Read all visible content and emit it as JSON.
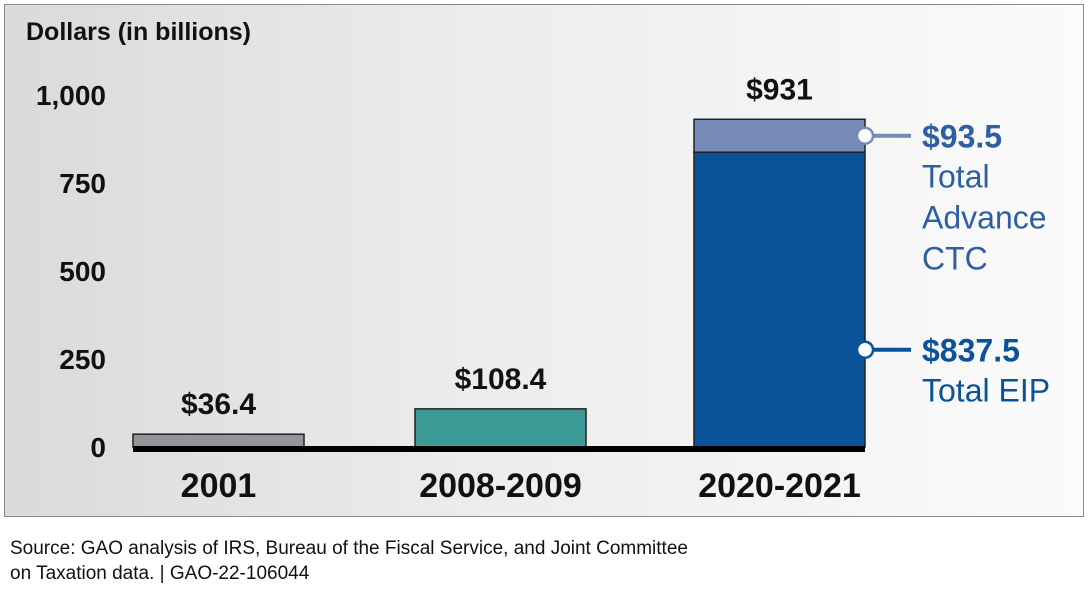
{
  "chart_data": {
    "type": "bar",
    "stacked": true,
    "ylabel": "Dollars (in billions)",
    "ylim": [
      0,
      1000
    ],
    "yticks": [
      {
        "value": 0,
        "label": "0"
      },
      {
        "value": 250,
        "label": "250"
      },
      {
        "value": 500,
        "label": "500"
      },
      {
        "value": 750,
        "label": "750"
      },
      {
        "value": 1000,
        "label": "1,000"
      }
    ],
    "grid": false,
    "categories": [
      "2001",
      "2008-2009",
      "2020-2021"
    ],
    "totals": [
      36.4,
      108.4,
      931
    ],
    "total_labels": [
      "$36.4",
      "$108.4",
      "$931"
    ],
    "bars": [
      {
        "category": "2001",
        "segments": [
          {
            "value": 36.4,
            "color": "#939598"
          }
        ]
      },
      {
        "category": "2008-2009",
        "segments": [
          {
            "value": 108.4,
            "color": "#3d9b97"
          }
        ]
      },
      {
        "category": "2020-2021",
        "segments": [
          {
            "value": 837.5,
            "color": "#0a5399",
            "annotation": {
              "value_label": "$837.5",
              "text": [
                "Total EIP"
              ],
              "color": "#0a5399",
              "line_color": "#0a5399"
            }
          },
          {
            "value": 93.5,
            "color": "#778bba",
            "annotation": {
              "value_label": "$93.5",
              "text": [
                "Total",
                "Advance",
                "CTC"
              ],
              "color": "#2f5ea3",
              "line_color": "#778bba"
            }
          }
        ]
      }
    ]
  },
  "source": {
    "line1": "Source: GAO analysis of IRS, Bureau of the Fiscal Service, and Joint Committee",
    "line2": "on Taxation data.  |  GAO-22-106044"
  }
}
